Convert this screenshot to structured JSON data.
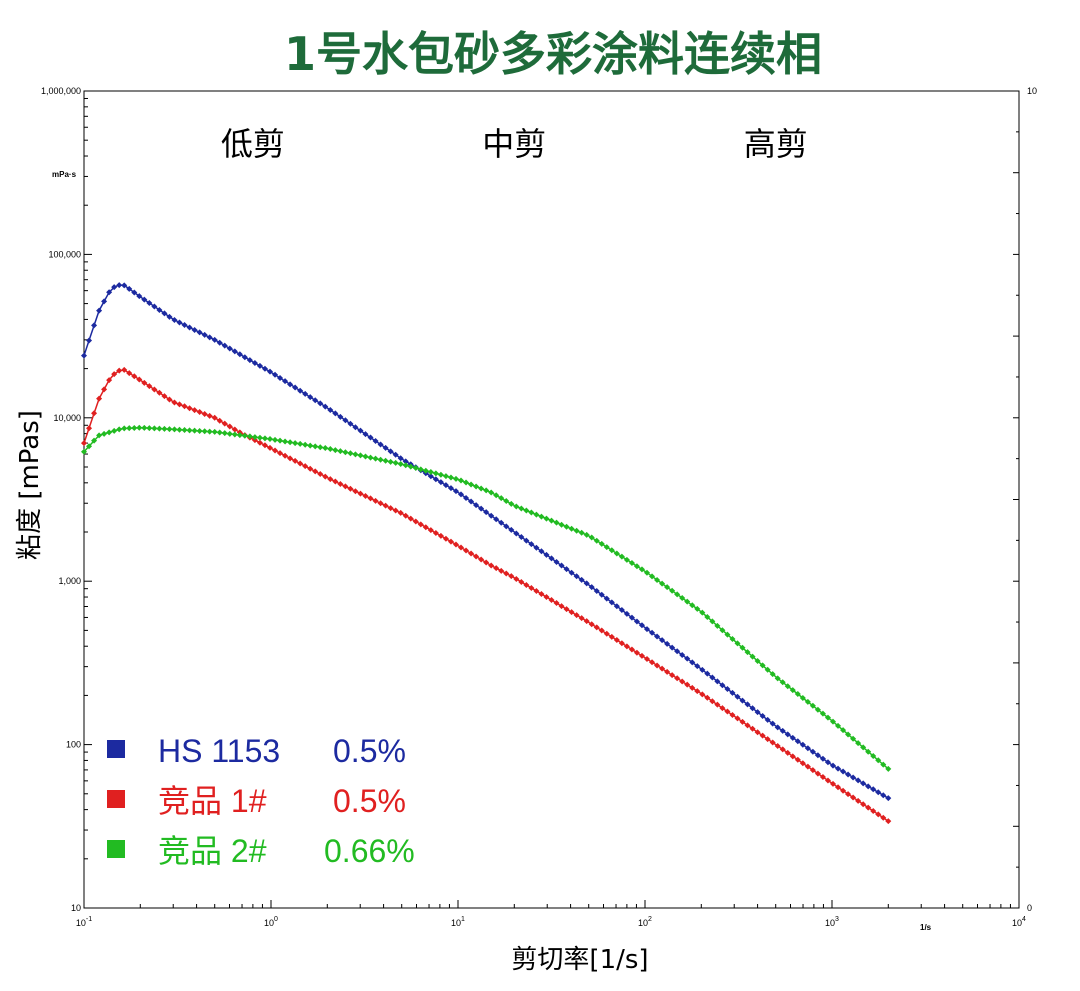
{
  "chart_data": {
    "type": "line",
    "title": "1号水包砂多彩涂料连续相",
    "title_color": "#1e6b3a",
    "xlabel": "剪切率[1/s]",
    "ylabel": "粘度 [mPas]",
    "x_unit": "1/s",
    "y_unit": "mPa·s",
    "x_scale": "log",
    "y_scale": "log",
    "xlim": [
      0.1,
      10000
    ],
    "ylim": [
      10,
      1000000
    ],
    "right_ylim": [
      0,
      10
    ],
    "x_ticks": [
      {
        "value": 0.1,
        "base": "10",
        "exp": "-1"
      },
      {
        "value": 1,
        "base": "10",
        "exp": "0"
      },
      {
        "value": 10,
        "base": "10",
        "exp": "1"
      },
      {
        "value": 100,
        "base": "10",
        "exp": "2"
      },
      {
        "value": 1000,
        "base": "10",
        "exp": "3"
      },
      {
        "value": 10000,
        "base": "10",
        "exp": "4"
      }
    ],
    "y_ticks": [
      {
        "value": 1000000,
        "label": "1,000,000"
      },
      {
        "value": 100000,
        "label": "100,000"
      },
      {
        "value": 10000,
        "label": "10,000"
      },
      {
        "value": 1000,
        "label": "1,000"
      },
      {
        "value": 100,
        "label": "100"
      },
      {
        "value": 10,
        "label": "10"
      }
    ],
    "right_y_ticks": [
      {
        "value": 10,
        "label": "10"
      },
      {
        "value": 0,
        "label": "0"
      }
    ],
    "regions": [
      {
        "label": "低剪",
        "x": 0.8
      },
      {
        "label": "中剪",
        "x": 20
      },
      {
        "label": "高剪",
        "x": 500
      }
    ],
    "grid": false,
    "legend_position": "bottom-left",
    "series": [
      {
        "name": "HS 1153",
        "concentration": "0.5%",
        "color": "#1c2aa0",
        "x": [
          0.1,
          0.12,
          0.14,
          0.16,
          0.2,
          0.3,
          0.5,
          1,
          2,
          5,
          10,
          20,
          50,
          100,
          200,
          500,
          1000,
          2000
        ],
        "y": [
          24000,
          45000,
          62000,
          66000,
          55000,
          40000,
          30000,
          19000,
          11500,
          5600,
          3500,
          2000,
          950,
          520,
          290,
          130,
          75,
          47
        ]
      },
      {
        "name": "竞品 1#",
        "concentration": "0.5%",
        "color": "#e02020",
        "x": [
          0.1,
          0.12,
          0.14,
          0.16,
          0.2,
          0.3,
          0.5,
          0.7,
          1,
          2,
          5,
          10,
          15,
          20,
          50,
          100,
          200,
          500,
          1000,
          2000
        ],
        "y": [
          7000,
          13000,
          18000,
          20000,
          17000,
          12500,
          10000,
          8000,
          6500,
          4300,
          2600,
          1650,
          1250,
          1050,
          560,
          340,
          205,
          100,
          58,
          34
        ]
      },
      {
        "name": "竞品 2#",
        "concentration": "0.66%",
        "color": "#22bb22",
        "x": [
          0.1,
          0.12,
          0.16,
          0.2,
          0.3,
          0.5,
          1,
          2,
          5,
          10,
          15,
          20,
          50,
          100,
          200,
          500,
          1000,
          2000
        ],
        "y": [
          6200,
          7800,
          8600,
          8700,
          8500,
          8200,
          7400,
          6500,
          5200,
          4200,
          3500,
          2900,
          1900,
          1150,
          650,
          260,
          140,
          71
        ]
      }
    ]
  }
}
